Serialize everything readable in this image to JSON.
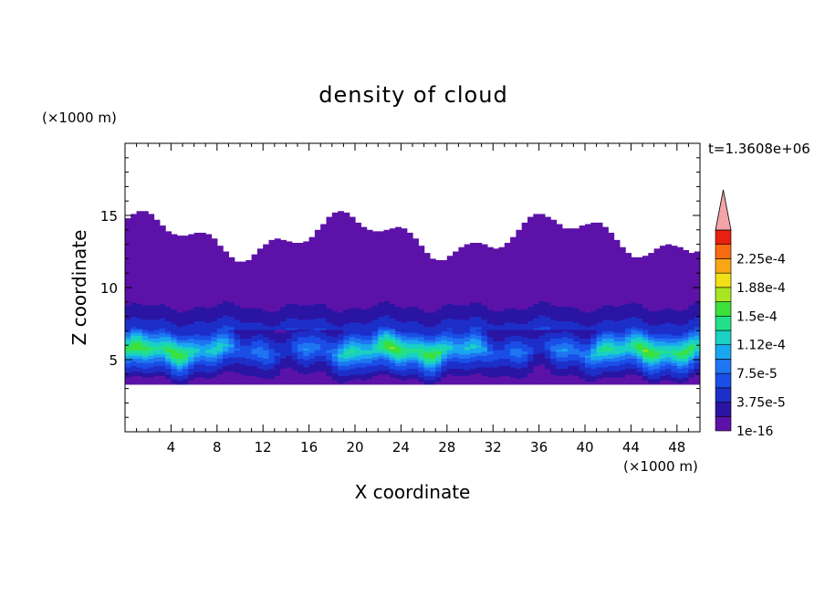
{
  "chart_data": {
    "type": "heatmap",
    "title": "density of cloud",
    "xlabel": "X coordinate",
    "ylabel": "Z coordinate",
    "x_unit": "(×1000 m)",
    "y_unit": "(×1000 m)",
    "time_label": "t=1.3608e+06",
    "xlim": [
      0,
      50
    ],
    "ylim": [
      0,
      20
    ],
    "x_ticks": [
      4,
      8,
      12,
      16,
      20,
      24,
      28,
      32,
      36,
      40,
      44,
      48
    ],
    "y_ticks": [
      5,
      10,
      15
    ],
    "colorbar": {
      "tick_labels": [
        "1e-16",
        "3.75e-5",
        "7.5e-5",
        "1.12e-4",
        "1.5e-4",
        "1.88e-4",
        "2.25e-4"
      ],
      "levels": [
        1e-16,
        1.875e-05,
        3.75e-05,
        5.625e-05,
        7.5e-05,
        9.375e-05,
        0.0001125,
        0.00013125,
        0.00015,
        0.00016875,
        0.0001875,
        0.00020625,
        0.000225,
        0.00024375
      ],
      "colors": [
        "#5c12a8",
        "#2a14a4",
        "#1d2fc8",
        "#1a4ee6",
        "#1f75f2",
        "#19a7f0",
        "#1bd0c4",
        "#22e08a",
        "#3ce03a",
        "#a8e622",
        "#f0e018",
        "#f8a614",
        "#f86a10",
        "#e82010"
      ],
      "extend_color": "#f4a4a8"
    },
    "profile": {
      "z": [
        3.3,
        4.0,
        4.6,
        5.2,
        5.6,
        6.2,
        7.0,
        8.5,
        10.5,
        14.0
      ],
      "density": [
        1e-16,
        4e-05,
        7e-05,
        0.00012,
        0.00015,
        0.00011,
        5e-05,
        2e-05,
        1e-16,
        1e-16
      ]
    }
  }
}
